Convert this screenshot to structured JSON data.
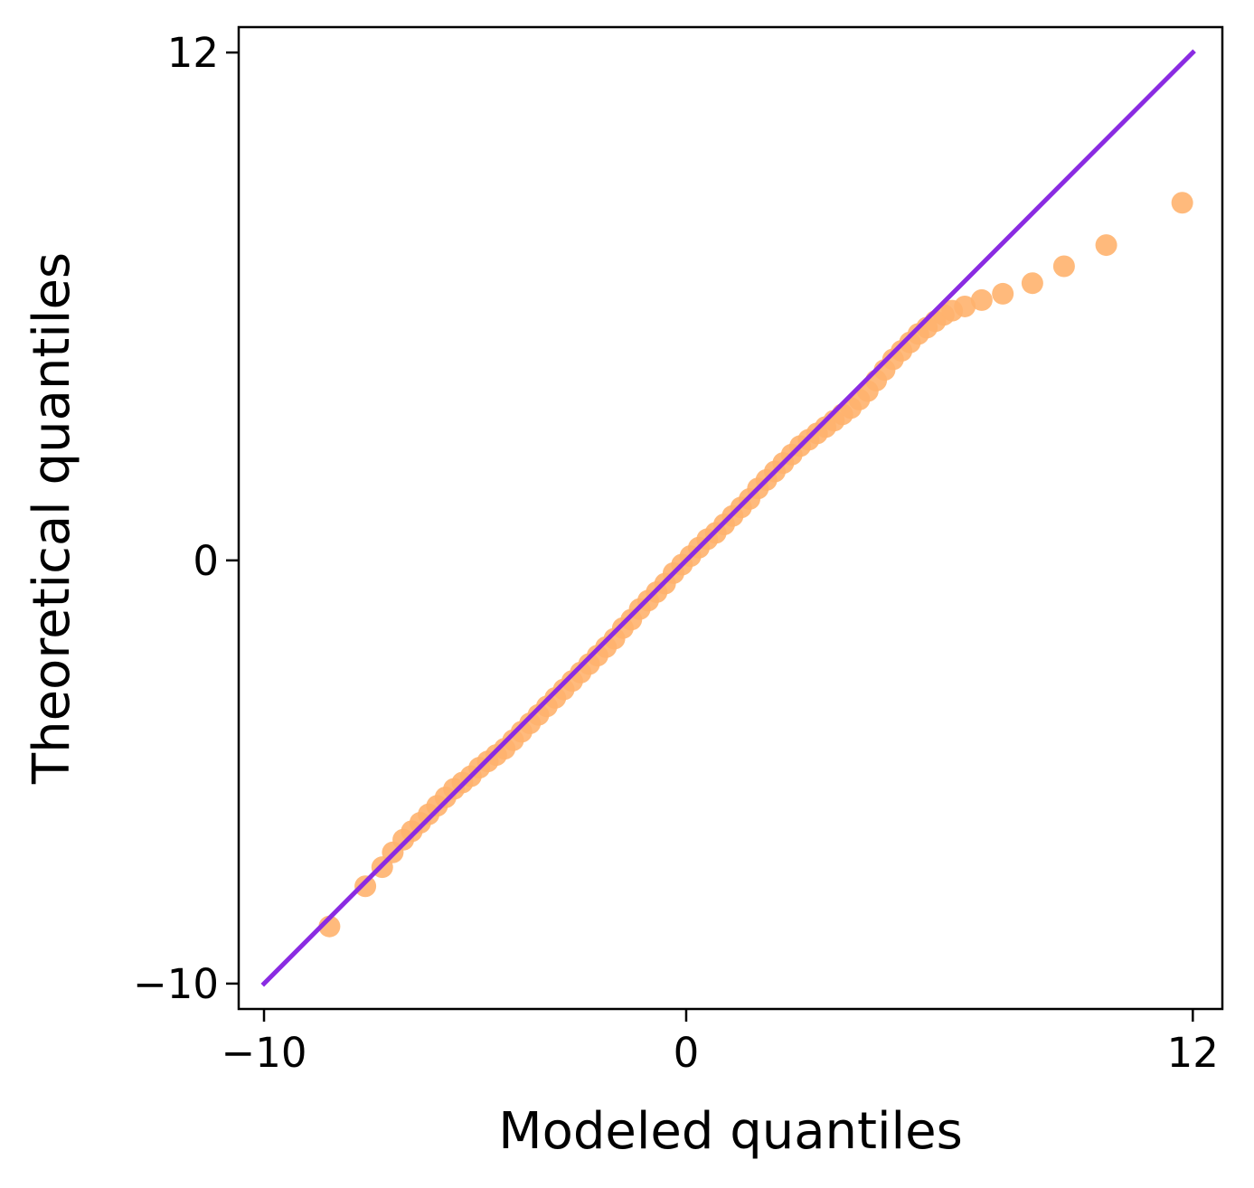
{
  "chart_data": {
    "type": "scatter",
    "title": "",
    "xlabel": "Modeled quantiles",
    "ylabel": "Theoretical quantiles",
    "xlim": [
      -10.6,
      12.7
    ],
    "ylim": [
      -10.6,
      12.6
    ],
    "xticks": [
      {
        "value": -10,
        "label": "−10"
      },
      {
        "value": 0,
        "label": "0"
      },
      {
        "value": 12,
        "label": "12"
      }
    ],
    "yticks": [
      {
        "value": -10,
        "label": "−10"
      },
      {
        "value": 0,
        "label": "0"
      },
      {
        "value": 12,
        "label": "12"
      }
    ],
    "grid": false,
    "legend": "none",
    "series": [
      {
        "kind": "points",
        "color": "#ffb26e",
        "points": [
          [
            -8.45,
            -8.65
          ],
          [
            -7.6,
            -7.7
          ],
          [
            -7.2,
            -7.25
          ],
          [
            -6.95,
            -6.9
          ],
          [
            -6.7,
            -6.6
          ],
          [
            -6.5,
            -6.4
          ],
          [
            -6.3,
            -6.2
          ],
          [
            -6.1,
            -6.0
          ],
          [
            -5.9,
            -5.8
          ],
          [
            -5.7,
            -5.6
          ],
          [
            -5.5,
            -5.4
          ],
          [
            -5.3,
            -5.25
          ],
          [
            -5.1,
            -5.1
          ],
          [
            -4.9,
            -4.9
          ],
          [
            -4.7,
            -4.75
          ],
          [
            -4.5,
            -4.6
          ],
          [
            -4.3,
            -4.45
          ],
          [
            -4.1,
            -4.25
          ],
          [
            -3.9,
            -4.05
          ],
          [
            -3.7,
            -3.85
          ],
          [
            -3.5,
            -3.65
          ],
          [
            -3.3,
            -3.45
          ],
          [
            -3.1,
            -3.25
          ],
          [
            -2.9,
            -3.05
          ],
          [
            -2.7,
            -2.85
          ],
          [
            -2.5,
            -2.65
          ],
          [
            -2.3,
            -2.45
          ],
          [
            -2.1,
            -2.25
          ],
          [
            -1.9,
            -2.05
          ],
          [
            -1.7,
            -1.85
          ],
          [
            -1.5,
            -1.6
          ],
          [
            -1.3,
            -1.4
          ],
          [
            -1.1,
            -1.15
          ],
          [
            -0.9,
            -0.95
          ],
          [
            -0.7,
            -0.75
          ],
          [
            -0.5,
            -0.55
          ],
          [
            -0.3,
            -0.3
          ],
          [
            -0.1,
            -0.1
          ],
          [
            0.1,
            0.1
          ],
          [
            0.3,
            0.3
          ],
          [
            0.5,
            0.5
          ],
          [
            0.7,
            0.65
          ],
          [
            0.9,
            0.85
          ],
          [
            1.1,
            1.05
          ],
          [
            1.3,
            1.25
          ],
          [
            1.5,
            1.45
          ],
          [
            1.7,
            1.7
          ],
          [
            1.9,
            1.9
          ],
          [
            2.1,
            2.1
          ],
          [
            2.3,
            2.3
          ],
          [
            2.5,
            2.5
          ],
          [
            2.7,
            2.7
          ],
          [
            2.9,
            2.85
          ],
          [
            3.1,
            3.0
          ],
          [
            3.3,
            3.15
          ],
          [
            3.5,
            3.3
          ],
          [
            3.7,
            3.45
          ],
          [
            3.9,
            3.6
          ],
          [
            4.1,
            3.8
          ],
          [
            4.3,
            4.0
          ],
          [
            4.5,
            4.25
          ],
          [
            4.7,
            4.5
          ],
          [
            4.9,
            4.75
          ],
          [
            5.1,
            4.95
          ],
          [
            5.3,
            5.15
          ],
          [
            5.5,
            5.35
          ],
          [
            5.7,
            5.5
          ],
          [
            5.9,
            5.65
          ],
          [
            6.1,
            5.8
          ],
          [
            6.3,
            5.9
          ],
          [
            6.6,
            6.0
          ],
          [
            7.0,
            6.15
          ],
          [
            7.5,
            6.3
          ],
          [
            8.2,
            6.55
          ],
          [
            8.95,
            6.95
          ],
          [
            9.95,
            7.45
          ],
          [
            11.75,
            8.45
          ]
        ]
      },
      {
        "kind": "line",
        "color": "#8a2be2",
        "points": [
          [
            -10,
            -10
          ],
          [
            12,
            12
          ]
        ]
      }
    ]
  }
}
